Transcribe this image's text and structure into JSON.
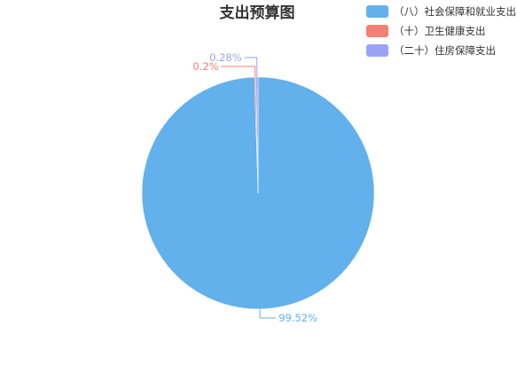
{
  "chart_data": {
    "type": "pie",
    "title": "支出预算图",
    "series": [
      {
        "name": "（八）社会保障和就业支出",
        "value": 99.52,
        "label": "99.52%",
        "color": "#62b0ec"
      },
      {
        "name": "（十）卫生健康支出",
        "value": 0.2,
        "label": "0.2%",
        "color": "#f38074"
      },
      {
        "name": "（二十）住房保障支出",
        "value": 0.28,
        "label": "0.28%",
        "color": "#9aa3f7"
      }
    ],
    "legend_position": "top-right"
  }
}
